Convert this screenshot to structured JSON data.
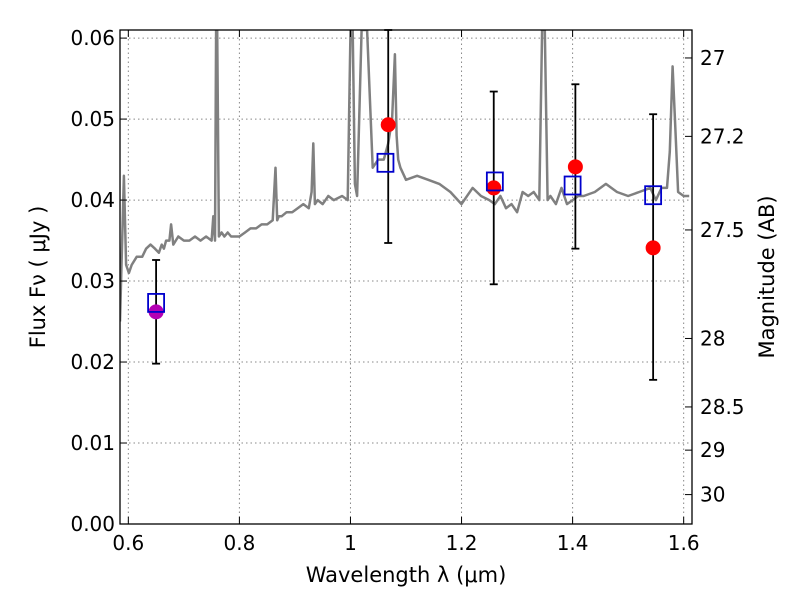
{
  "chart_data": {
    "type": "scatter",
    "xlabel": "Wavelength  λ (μm)",
    "ylabel": "Flux  Fν  ( μJy )",
    "y2label": "Magnitude (AB)",
    "xlim": [
      0.585,
      1.615
    ],
    "ylim": [
      0.0,
      0.061
    ],
    "grid": true,
    "x_ticks": [
      0.6,
      0.8,
      1.0,
      1.2,
      1.4,
      1.6
    ],
    "x_tick_labels": [
      "0.6",
      "0.8",
      "1",
      "1.2",
      "1.4",
      "1.6"
    ],
    "y_ticks": [
      0.0,
      0.01,
      0.02,
      0.03,
      0.04,
      0.05,
      0.06
    ],
    "y_tick_labels": [
      "0.00",
      "0.01",
      "0.02",
      "0.03",
      "0.04",
      "0.05",
      "0.06"
    ],
    "y2_ticks": [
      27,
      27.2,
      27.5,
      28,
      28.5,
      29,
      30
    ],
    "y2_tick_labels": [
      "27",
      "27.2",
      "27.5",
      "28",
      "28.5",
      "29",
      "30"
    ],
    "colors": {
      "spectrum": "#808080",
      "observed": "#ff0000",
      "observed_first": "#b400b4",
      "model_box": "#0000cc",
      "errorbar": "#000000",
      "grid": "#888888"
    },
    "spectrum": {
      "x": [
        0.585,
        0.592,
        0.596,
        0.601,
        0.606,
        0.615,
        0.625,
        0.632,
        0.64,
        0.648,
        0.655,
        0.66,
        0.664,
        0.668,
        0.674,
        0.677,
        0.681,
        0.69,
        0.7,
        0.71,
        0.72,
        0.73,
        0.74,
        0.75,
        0.753,
        0.756,
        0.758,
        0.76,
        0.763,
        0.768,
        0.773,
        0.779,
        0.785,
        0.8,
        0.81,
        0.82,
        0.83,
        0.84,
        0.85,
        0.86,
        0.865,
        0.868,
        0.871,
        0.876,
        0.885,
        0.895,
        0.905,
        0.915,
        0.925,
        0.93,
        0.933,
        0.936,
        0.941,
        0.95,
        0.96,
        0.97,
        0.985,
        0.995,
        1.0,
        1.004,
        1.008,
        1.012,
        1.02,
        1.03,
        1.04,
        1.05,
        1.06,
        1.068,
        1.075,
        1.08,
        1.083,
        1.086,
        1.09,
        1.1,
        1.12,
        1.14,
        1.16,
        1.18,
        1.2,
        1.22,
        1.235,
        1.25,
        1.26,
        1.27,
        1.28,
        1.29,
        1.3,
        1.31,
        1.32,
        1.33,
        1.34,
        1.345,
        1.35,
        1.355,
        1.36,
        1.37,
        1.38,
        1.39,
        1.4,
        1.41,
        1.42,
        1.44,
        1.46,
        1.48,
        1.5,
        1.52,
        1.54,
        1.55,
        1.56,
        1.57,
        1.575,
        1.58,
        1.585,
        1.59,
        1.6,
        1.61
      ],
      "y": [
        0.025,
        0.043,
        0.032,
        0.031,
        0.032,
        0.033,
        0.033,
        0.034,
        0.0345,
        0.034,
        0.0335,
        0.0345,
        0.034,
        0.035,
        0.035,
        0.037,
        0.0345,
        0.0355,
        0.035,
        0.035,
        0.0355,
        0.035,
        0.0355,
        0.035,
        0.038,
        0.035,
        0.061,
        0.061,
        0.0355,
        0.036,
        0.0355,
        0.036,
        0.0355,
        0.0355,
        0.036,
        0.0365,
        0.0365,
        0.037,
        0.037,
        0.0375,
        0.044,
        0.0375,
        0.038,
        0.038,
        0.0385,
        0.0385,
        0.039,
        0.0395,
        0.039,
        0.041,
        0.047,
        0.0395,
        0.04,
        0.0395,
        0.0405,
        0.04,
        0.0405,
        0.04,
        0.061,
        0.061,
        0.042,
        0.0405,
        0.061,
        0.061,
        0.044,
        0.045,
        0.045,
        0.047,
        0.05,
        0.058,
        0.048,
        0.045,
        0.044,
        0.0425,
        0.043,
        0.0425,
        0.042,
        0.041,
        0.0395,
        0.0415,
        0.0405,
        0.04,
        0.0395,
        0.0405,
        0.039,
        0.0395,
        0.0385,
        0.041,
        0.0405,
        0.041,
        0.04,
        0.061,
        0.061,
        0.04,
        0.0405,
        0.0395,
        0.0415,
        0.0395,
        0.04,
        0.0405,
        0.0405,
        0.041,
        0.042,
        0.041,
        0.0405,
        0.041,
        0.0415,
        0.04,
        0.0415,
        0.0415,
        0.046,
        0.0565,
        0.049,
        0.041,
        0.0405,
        0.0405
      ]
    },
    "series": [
      {
        "marker": "circle",
        "x": [
          0.65,
          1.068,
          1.258,
          1.405,
          1.545
        ],
        "y": [
          0.0262,
          0.0493,
          0.0415,
          0.0441,
          0.0341
        ],
        "yerr_low": [
          0.0198,
          0.0347,
          0.0296,
          0.034,
          0.0178
        ],
        "yerr_high": [
          0.0326,
          0.061,
          0.0534,
          0.0543,
          0.0506
        ]
      },
      {
        "marker": "square",
        "x": [
          0.65,
          1.063,
          1.26,
          1.4,
          1.545
        ],
        "y": [
          0.0273,
          0.0446,
          0.0423,
          0.0418,
          0.0406
        ]
      }
    ]
  }
}
